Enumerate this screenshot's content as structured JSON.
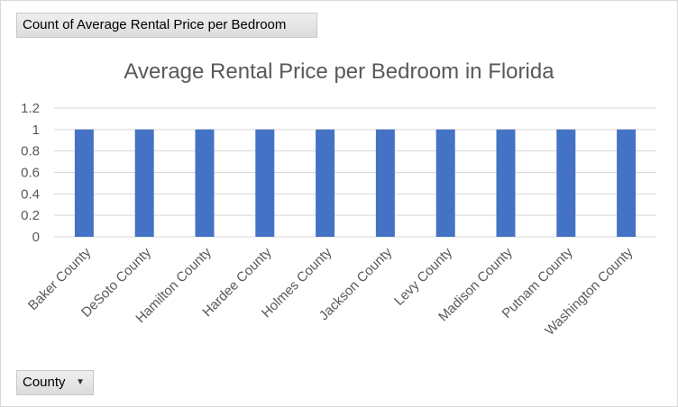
{
  "pivot": {
    "value_field": "Count of Average Rental Price per Bedroom",
    "axis_field": "County"
  },
  "icons": {
    "axis_dropdown": "dropdown-arrow-icon"
  },
  "colors": {
    "bar": "#4472C4",
    "grid": "#d9d9d9",
    "text": "#595959"
  },
  "chart_data": {
    "type": "bar",
    "title": "Average Rental Price per Bedroom in Florida",
    "xlabel": "",
    "ylabel": "",
    "categories": [
      "Baker County",
      "DeSoto County",
      "Hamilton County",
      "Hardee County",
      "Holmes County",
      "Jackson County",
      "Levy County",
      "Madison County",
      "Putnam County",
      "Washington County"
    ],
    "values": [
      1,
      1,
      1,
      1,
      1,
      1,
      1,
      1,
      1,
      1
    ],
    "ylim": [
      0,
      1.2
    ],
    "yticks": [
      "0",
      "0.2",
      "0.4",
      "0.6",
      "0.8",
      "1",
      "1.2"
    ],
    "grid": true,
    "legend": "none"
  }
}
